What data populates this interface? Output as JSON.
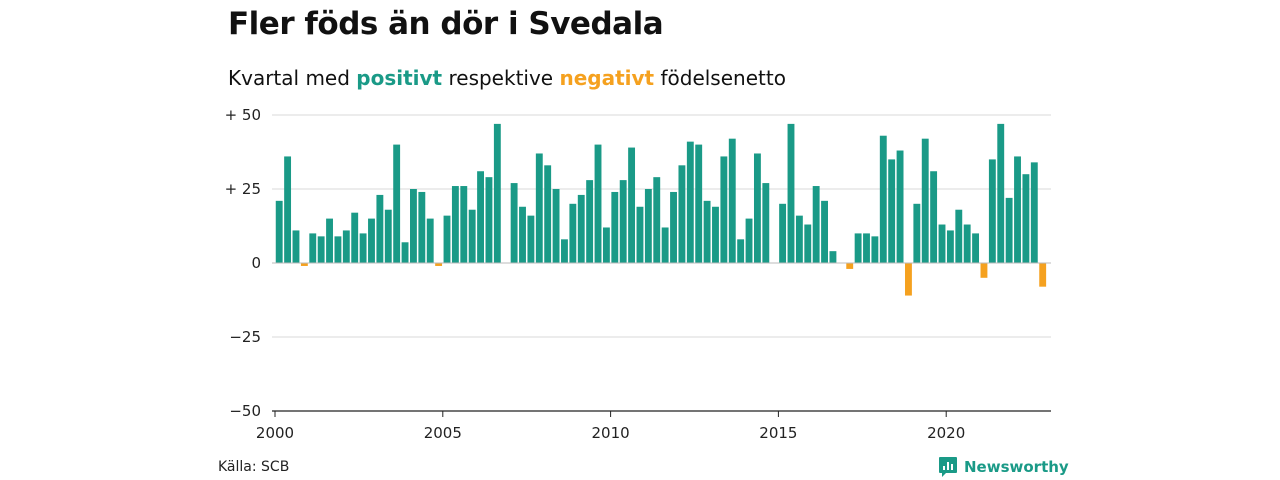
{
  "header": {
    "title": "Fler föds än dör i Svedala",
    "subtitle_pre": "Kvartal med ",
    "subtitle_pos": "positivt",
    "subtitle_mid": " respektive ",
    "subtitle_neg": "negativt",
    "subtitle_post": " födelsenetto"
  },
  "footer": {
    "source": "Källa: SCB",
    "brand": "Newsworthy"
  },
  "colors": {
    "positive": "#1a9a87",
    "negative": "#f5a11f",
    "grid": "#d9d9d9",
    "axis": "#222222"
  },
  "chart_data": {
    "type": "bar",
    "title": "Fler föds än dör i Svedala",
    "subtitle": "Kvartal med positivt respektive negativt födelsenetto",
    "xlabel": "",
    "ylabel": "",
    "ylim": [
      -50,
      50
    ],
    "grid": true,
    "yticks": [
      50,
      25,
      0,
      -25,
      -50
    ],
    "ytick_labels": [
      "+ 50",
      "+ 25",
      "0",
      "−25",
      "−50"
    ],
    "xticks": [
      2000,
      2005,
      2010,
      2015,
      2020
    ],
    "x_start_year": 2000,
    "categories_unit": "quarter",
    "values": [
      21,
      36,
      11,
      -1,
      10,
      9,
      15,
      9,
      11,
      17,
      10,
      15,
      23,
      18,
      40,
      7,
      25,
      24,
      15,
      -1,
      16,
      26,
      26,
      18,
      31,
      29,
      47,
      0,
      27,
      19,
      16,
      37,
      33,
      25,
      8,
      20,
      23,
      28,
      40,
      12,
      24,
      28,
      39,
      19,
      25,
      29,
      12,
      24,
      33,
      41,
      40,
      21,
      19,
      36,
      42,
      8,
      15,
      37,
      27,
      0,
      20,
      47,
      16,
      13,
      26,
      21,
      4,
      0,
      -2,
      10,
      10,
      9,
      43,
      35,
      38,
      -11,
      20,
      42,
      31,
      13,
      11,
      18,
      13,
      10,
      -5,
      35,
      47,
      22,
      36,
      30,
      34,
      -8
    ]
  }
}
